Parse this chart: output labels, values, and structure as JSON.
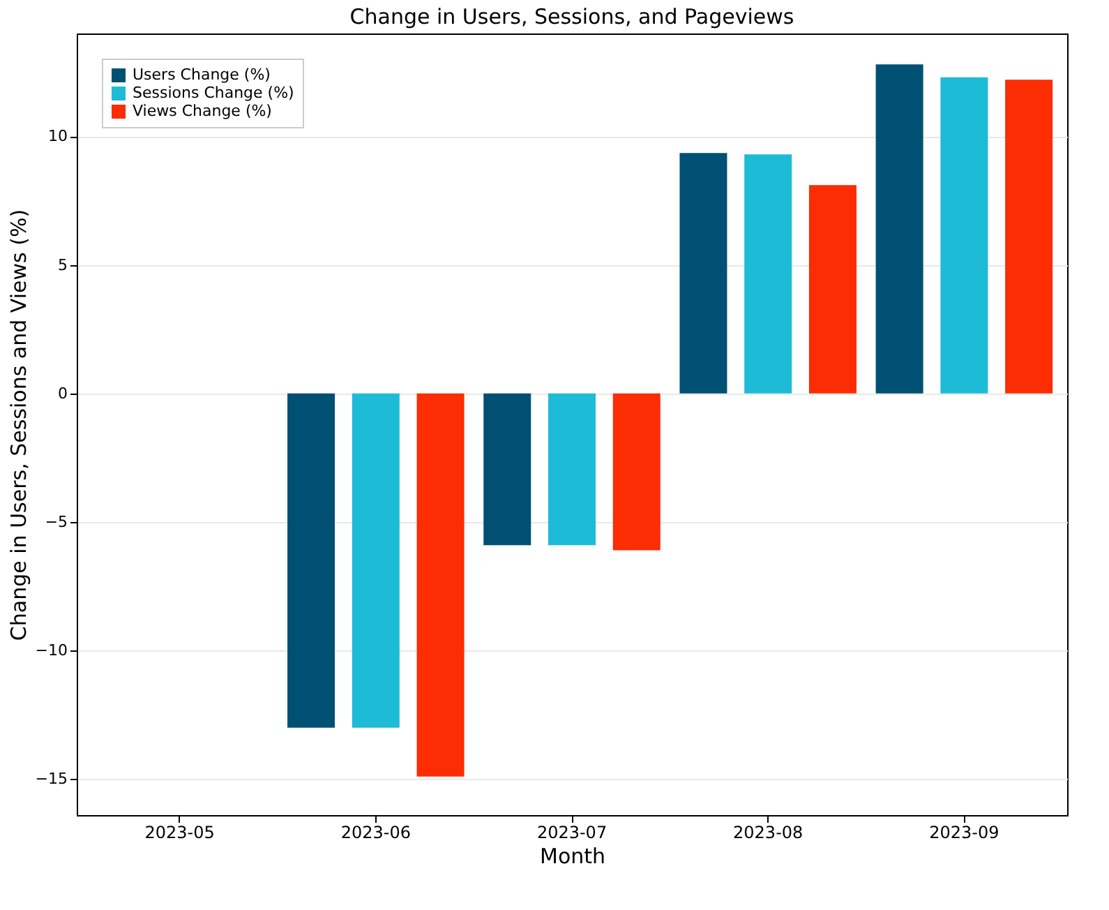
{
  "chart_data": {
    "type": "bar",
    "title": "Change in Users, Sessions, and Pageviews",
    "xlabel": "Month",
    "ylabel": "Change in Users, Sessions and Views (%)",
    "categories": [
      "2023-05",
      "2023-06",
      "2023-07",
      "2023-08",
      "2023-09"
    ],
    "series": [
      {
        "name": "Users Change (%)",
        "color": "#005073",
        "values": [
          null,
          -13.0,
          -5.9,
          9.35,
          12.8
        ]
      },
      {
        "name": "Sessions Change (%)",
        "color": "#1ebbd7",
        "values": [
          null,
          -13.0,
          -5.9,
          9.3,
          12.3
        ]
      },
      {
        "name": "Views Change (%)",
        "color": "#fc2c03",
        "values": [
          null,
          -14.9,
          -6.1,
          8.1,
          12.2
        ]
      }
    ],
    "ylim": [
      -16.4,
      14
    ],
    "yticks": [
      -15,
      -10,
      -5,
      0,
      5,
      10
    ],
    "grid": "y",
    "legend": "top left"
  }
}
